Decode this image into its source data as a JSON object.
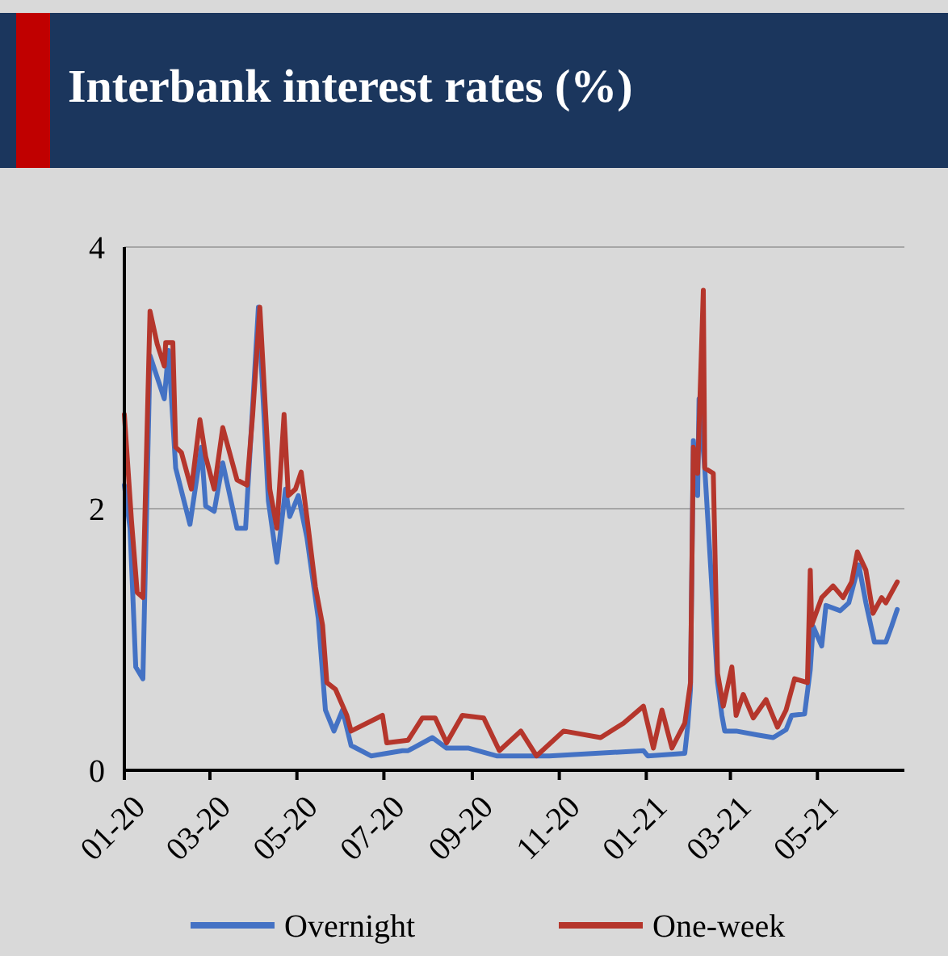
{
  "chart_data": {
    "type": "line",
    "title": "Interbank interest rates (%)",
    "xlim": [
      "2020-01-01",
      "2021-07-01"
    ],
    "xticks": [
      {
        "value": "2020-01-01",
        "label": "01-20"
      },
      {
        "value": "2020-03-01",
        "label": "03-20"
      },
      {
        "value": "2020-05-01",
        "label": "05-20"
      },
      {
        "value": "2020-07-01",
        "label": "07-20"
      },
      {
        "value": "2020-09-01",
        "label": "09-20"
      },
      {
        "value": "2020-11-01",
        "label": "11-20"
      },
      {
        "value": "2021-01-01",
        "label": "01-21"
      },
      {
        "value": "2021-03-01",
        "label": "03-21"
      },
      {
        "value": "2021-05-01",
        "label": "05-21"
      }
    ],
    "ylim": [
      0,
      4
    ],
    "yticks": [
      0,
      2,
      4
    ],
    "grid": "y",
    "legend": "bottom",
    "line_style": "solid",
    "marker": "none",
    "series": [
      {
        "name": "Overnight",
        "color": "#4472c4",
        "x": [
          "2020-01-01",
          "2020-01-05",
          "2020-01-09",
          "2020-01-14",
          "2020-01-19",
          "2020-01-29",
          "2020-02-01",
          "2020-02-06",
          "2020-02-16",
          "2020-02-24",
          "2020-02-27",
          "2020-03-04",
          "2020-03-10",
          "2020-03-20",
          "2020-03-26",
          "2020-04-04",
          "2020-04-11",
          "2020-04-17",
          "2020-04-23",
          "2020-04-26",
          "2020-05-02",
          "2020-05-08",
          "2020-05-16",
          "2020-05-21",
          "2020-05-27",
          "2020-06-02",
          "2020-06-08",
          "2020-06-22",
          "2020-07-14",
          "2020-07-18",
          "2020-08-04",
          "2020-08-14",
          "2020-08-29",
          "2020-09-18",
          "2020-10-25",
          "2020-12-30",
          "2021-01-02",
          "2021-01-28",
          "2021-01-30",
          "2021-02-01",
          "2021-02-03",
          "2021-02-06",
          "2021-02-07",
          "2021-02-11",
          "2021-02-20",
          "2021-02-23",
          "2021-02-25",
          "2021-03-05",
          "2021-03-20",
          "2021-03-31",
          "2021-04-09",
          "2021-04-13",
          "2021-04-22",
          "2021-04-26",
          "2021-04-28",
          "2021-05-04",
          "2021-05-07",
          "2021-05-17",
          "2021-05-23",
          "2021-05-30",
          "2021-06-04",
          "2021-06-10",
          "2021-06-18",
          "2021-06-22",
          "2021-06-26"
        ],
        "values": [
          2.18,
          1.85,
          0.79,
          0.7,
          3.17,
          2.84,
          3.21,
          2.31,
          1.88,
          2.47,
          2.02,
          1.98,
          2.35,
          1.85,
          1.85,
          3.54,
          2.06,
          1.59,
          2.15,
          1.94,
          2.1,
          1.78,
          1.16,
          0.46,
          0.3,
          0.46,
          0.19,
          0.11,
          0.15,
          0.15,
          0.25,
          0.17,
          0.17,
          0.11,
          0.11,
          0.15,
          0.11,
          0.13,
          0.33,
          0.62,
          2.52,
          2.1,
          2.84,
          2.31,
          0.67,
          0.42,
          0.3,
          0.3,
          0.27,
          0.25,
          0.31,
          0.42,
          0.43,
          0.77,
          1.1,
          0.95,
          1.26,
          1.22,
          1.28,
          1.57,
          1.28,
          0.98,
          0.98,
          1.1,
          1.23
        ]
      },
      {
        "name": "One-week",
        "color": "#b5362c",
        "x": [
          "2020-01-01",
          "2020-01-06",
          "2020-01-10",
          "2020-01-14",
          "2020-01-19",
          "2020-01-24",
          "2020-01-29",
          "2020-01-30",
          "2020-02-04",
          "2020-02-06",
          "2020-02-10",
          "2020-02-17",
          "2020-02-23",
          "2020-02-27",
          "2020-03-04",
          "2020-03-10",
          "2020-03-20",
          "2020-03-27",
          "2020-03-31",
          "2020-04-05",
          "2020-04-12",
          "2020-04-17",
          "2020-04-22",
          "2020-04-25",
          "2020-04-30",
          "2020-05-04",
          "2020-05-09",
          "2020-05-14",
          "2020-05-19",
          "2020-05-22",
          "2020-05-28",
          "2020-06-05",
          "2020-06-08",
          "2020-06-30",
          "2020-07-03",
          "2020-07-18",
          "2020-07-28",
          "2020-08-06",
          "2020-08-14",
          "2020-08-25",
          "2020-09-09",
          "2020-09-20",
          "2020-10-05",
          "2020-10-16",
          "2020-11-04",
          "2020-11-30",
          "2020-12-16",
          "2020-12-30",
          "2021-01-06",
          "2021-01-12",
          "2021-01-19",
          "2021-01-28",
          "2021-02-01",
          "2021-02-03",
          "2021-02-06",
          "2021-02-10",
          "2021-02-11",
          "2021-02-17",
          "2021-02-20",
          "2021-02-24",
          "2021-03-02",
          "2021-03-05",
          "2021-03-10",
          "2021-03-17",
          "2021-03-26",
          "2021-04-03",
          "2021-04-09",
          "2021-04-15",
          "2021-04-24",
          "2021-04-26",
          "2021-04-27",
          "2021-05-04",
          "2021-05-12",
          "2021-05-19",
          "2021-05-25",
          "2021-05-29",
          "2021-06-04",
          "2021-06-09",
          "2021-06-15",
          "2021-06-18",
          "2021-06-26"
        ],
        "values": [
          2.72,
          1.91,
          1.36,
          1.32,
          3.51,
          3.26,
          3.09,
          3.27,
          3.27,
          2.47,
          2.43,
          2.15,
          2.68,
          2.4,
          2.15,
          2.62,
          2.22,
          2.18,
          2.72,
          3.54,
          2.15,
          1.85,
          2.72,
          2.1,
          2.15,
          2.28,
          1.85,
          1.4,
          1.11,
          0.67,
          0.62,
          0.42,
          0.3,
          0.42,
          0.21,
          0.23,
          0.4,
          0.4,
          0.21,
          0.42,
          0.4,
          0.15,
          0.3,
          0.11,
          0.3,
          0.25,
          0.36,
          0.49,
          0.17,
          0.46,
          0.17,
          0.36,
          0.67,
          2.47,
          2.27,
          3.67,
          2.31,
          2.27,
          0.74,
          0.49,
          0.79,
          0.42,
          0.58,
          0.4,
          0.54,
          0.33,
          0.46,
          0.7,
          0.67,
          1.53,
          1.11,
          1.32,
          1.41,
          1.32,
          1.44,
          1.67,
          1.53,
          1.2,
          1.32,
          1.28,
          1.44
        ]
      }
    ]
  }
}
